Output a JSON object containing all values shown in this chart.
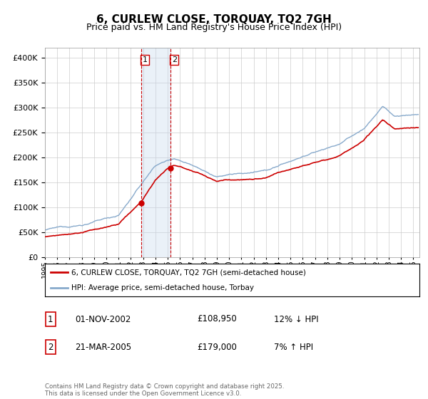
{
  "title": "6, CURLEW CLOSE, TORQUAY, TQ2 7GH",
  "subtitle": "Price paid vs. HM Land Registry's House Price Index (HPI)",
  "title_fontsize": 11,
  "subtitle_fontsize": 9,
  "background_color": "#ffffff",
  "grid_color": "#cccccc",
  "red_line_color": "#cc0000",
  "blue_line_color": "#88aacc",
  "sale1_date_num": 2002.83,
  "sale1_price": 108950,
  "sale2_date_num": 2005.22,
  "sale2_price": 179000,
  "vline_color": "#cc0000",
  "shade_color": "#c5d8ed",
  "legend_entries": [
    "6, CURLEW CLOSE, TORQUAY, TQ2 7GH (semi-detached house)",
    "HPI: Average price, semi-detached house, Torbay"
  ],
  "table_entries": [
    {
      "num": "1",
      "date": "01-NOV-2002",
      "price": "£108,950",
      "hpi": "12% ↓ HPI"
    },
    {
      "num": "2",
      "date": "21-MAR-2005",
      "price": "£179,000",
      "hpi": "7% ↑ HPI"
    }
  ],
  "footnote": "Contains HM Land Registry data © Crown copyright and database right 2025.\nThis data is licensed under the Open Government Licence v3.0.",
  "ylim": [
    0,
    420000
  ],
  "xlim_start": 1995.0,
  "xlim_end": 2025.5,
  "yticks": [
    0,
    50000,
    100000,
    150000,
    200000,
    250000,
    300000,
    350000,
    400000
  ]
}
